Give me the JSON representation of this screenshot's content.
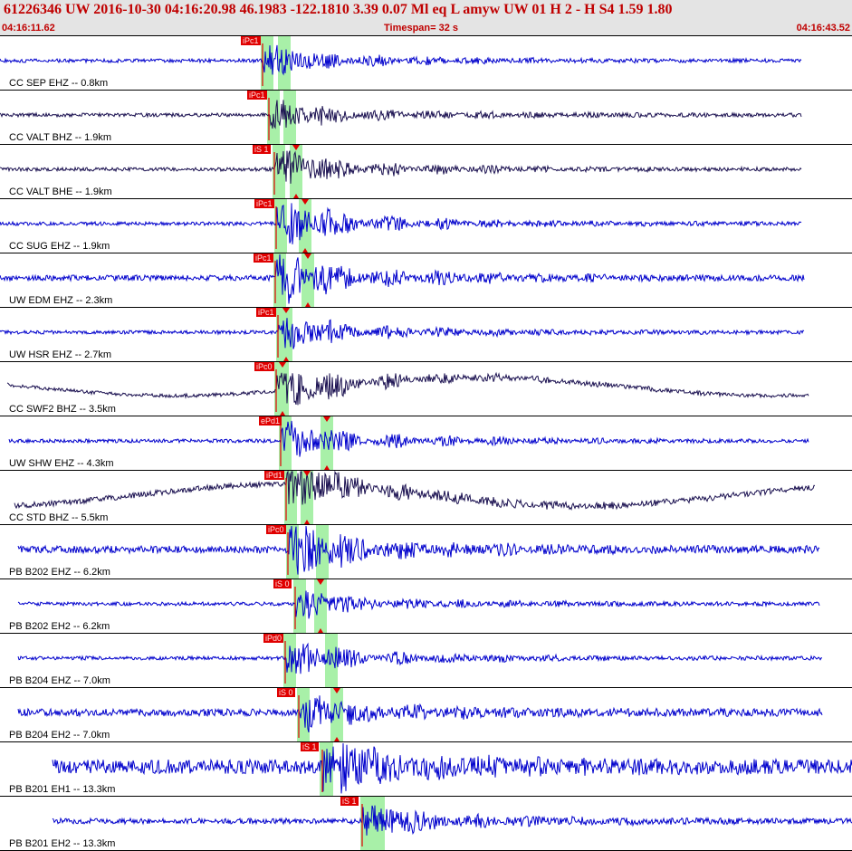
{
  "header": {
    "title": "61226346 UW 2016-10-30 04:16:20.98   46.1983 -122.1810   3.39  0.07 Ml  eq  L amyw     UW 01  H   2  -  H S4    1.59  1.80",
    "start_time": "04:16:11.62",
    "timespan": "Timespan=  32 s",
    "end_time": "04:16:43.52"
  },
  "colors": {
    "header_bg": "#e4e4e4",
    "header_text": "#c00000",
    "trace_blue": "#0000cc",
    "trace_dark": "#1a1050",
    "pick_red": "#e00000",
    "window_green": "#a8f0a8"
  },
  "traces": [
    {
      "label": "CC SEP EHZ -- 0.8km",
      "color": "#0000cc",
      "pick": "iPc1",
      "s_marker": false
    },
    {
      "label": "CC VALT BHZ -- 1.9km",
      "color": "#1a1050",
      "pick": "iPc1",
      "s_marker": false
    },
    {
      "label": "CC VALT BHE -- 1.9km",
      "color": "#1a1050",
      "pick": "iS 1",
      "s_marker": true
    },
    {
      "label": "CC SUG EHZ -- 1.9km",
      "color": "#0000cc",
      "pick": "iPc1",
      "s_marker": true
    },
    {
      "label": "UW EDM EHZ -- 2.3km",
      "color": "#0000cc",
      "pick": "iPc1",
      "s_marker": true
    },
    {
      "label": "UW HSR EHZ -- 2.7km",
      "color": "#0000cc",
      "pick": "iPc1",
      "s_marker": true
    },
    {
      "label": "CC SWF2 BHZ -- 3.5km",
      "color": "#1a1050",
      "pick": "iPc0",
      "s_marker": true
    },
    {
      "label": "UW SHW EHZ -- 4.3km",
      "color": "#0000cc",
      "pick": "ePd1",
      "s_marker": true
    },
    {
      "label": "CC STD BHZ -- 5.5km",
      "color": "#1a1050",
      "pick": "iPd1",
      "s_marker": true
    },
    {
      "label": "PB B202 EHZ -- 6.2km",
      "color": "#0000cc",
      "pick": "iPc0",
      "s_marker": false
    },
    {
      "label": "PB B202 EH2 -- 6.2km",
      "color": "#0000cc",
      "pick": "iS 0",
      "s_marker": true
    },
    {
      "label": "PB B204 EHZ -- 7.0km",
      "color": "#0000cc",
      "pick": "iPd0",
      "s_marker": false
    },
    {
      "label": "PB B204 EH2 -- 7.0km",
      "color": "#0000cc",
      "pick": "iS 0",
      "s_marker": true
    },
    {
      "label": "PB B201 EH1 -- 13.3km",
      "color": "#0000cc",
      "pick": "iS 1",
      "s_marker": false
    },
    {
      "label": "PB B201 EH2 -- 13.3km",
      "color": "#0000cc",
      "pick": "iS 1",
      "s_marker": false
    }
  ]
}
